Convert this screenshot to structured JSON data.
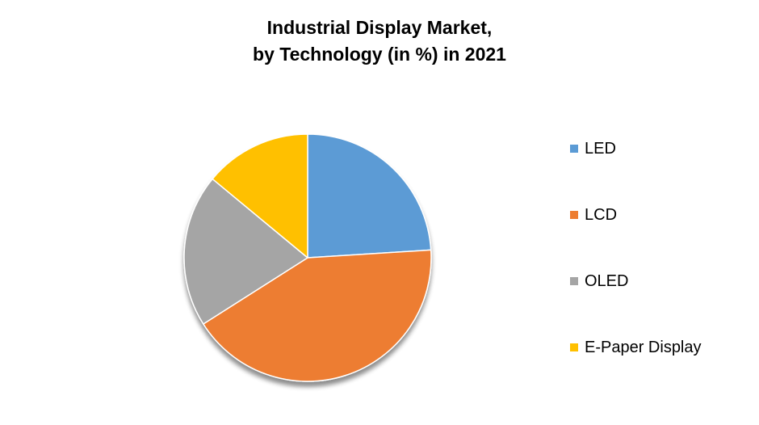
{
  "chart_data": {
    "type": "pie",
    "title_lines": [
      "Industrial Display Market,",
      "by Technology (in %) in 2021"
    ],
    "categories": [
      "LED",
      "LCD",
      "OLED",
      "E-Paper Display"
    ],
    "values": [
      24,
      42,
      20,
      14
    ],
    "colors": [
      "#5B9BD5",
      "#ED7D31",
      "#A5A5A5",
      "#FFC000"
    ],
    "start_angle_deg": 0,
    "direction": "clockwise",
    "legend_position": "right"
  }
}
